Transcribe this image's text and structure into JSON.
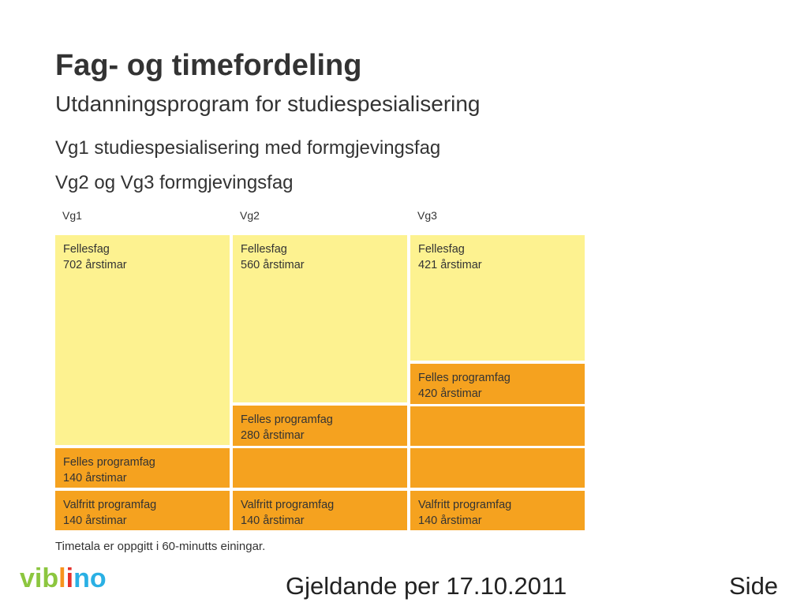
{
  "title": "Fag- og timefordeling",
  "subtitle": "Utdanningsprogram for studiespesialisering",
  "lines": [
    "Vg1 studiespesialisering med formgjevingsfag",
    "Vg2 og Vg3 formgjevingsfag"
  ],
  "columns": [
    {
      "label": "Vg1",
      "blocks": [
        {
          "name": "Fellesfag",
          "hours": "702 årstimar",
          "color": "#fdf290"
        },
        {
          "name": "Felles programfag",
          "hours": "140 årstimar",
          "color": "#f5a21f"
        },
        {
          "name": "Valfritt programfag",
          "hours": "140 årstimar",
          "color": "#f5a21f"
        }
      ]
    },
    {
      "label": "Vg2",
      "blocks": [
        {
          "name": "Fellesfag",
          "hours": "560 årstimar",
          "color": "#fdf290"
        },
        {
          "name": "Felles programfag",
          "hours": "280 årstimar",
          "color": "#f5a21f"
        },
        {
          "name": "Valfritt programfag",
          "hours": "140 årstimar",
          "color": "#f5a21f"
        }
      ]
    },
    {
      "label": "Vg3",
      "blocks": [
        {
          "name": "Fellesfag",
          "hours": "421 årstimar",
          "color": "#fdf290"
        },
        {
          "name": "Felles programfag",
          "hours": "420 årstimar",
          "color": "#f5a21f"
        },
        {
          "name": "Valfritt programfag",
          "hours": "140 årstimar",
          "color": "#f5a21f"
        }
      ]
    }
  ],
  "note": "Timetala er oppgitt i 60-minutts einingar.",
  "footer": {
    "date": "Gjeldande per 17.10.2011",
    "page": "Side"
  },
  "logo": {
    "letters": [
      "v",
      "i",
      "b",
      "l",
      "i",
      "n",
      "o"
    ],
    "colors": [
      "#8cc63f",
      "#8cc63f",
      "#8cc63f",
      "#f7941d",
      "#e5322d",
      "#2ab0e4",
      "#2ab0e4"
    ]
  }
}
